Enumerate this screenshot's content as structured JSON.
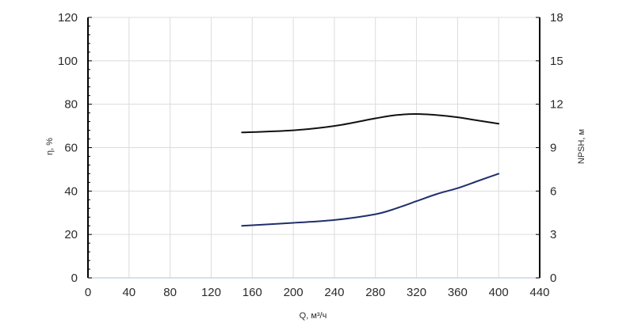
{
  "chart_data": {
    "type": "line",
    "title": "",
    "xlabel": "Q, м³/ч",
    "ylabel_left": "η, %",
    "ylabel_right": "NPSH, м",
    "xlim": [
      0,
      440
    ],
    "ylim_left": [
      0,
      120
    ],
    "ylim_right": [
      0,
      18
    ],
    "x_ticks": [
      0,
      40,
      80,
      120,
      160,
      200,
      240,
      280,
      320,
      360,
      400,
      440
    ],
    "y_left_ticks": [
      0,
      20,
      40,
      60,
      80,
      100,
      120
    ],
    "y_right_ticks": [
      0,
      3,
      6,
      9,
      12,
      15,
      18
    ],
    "grid": true,
    "series": [
      {
        "axis": "left",
        "color": "#111111",
        "x": [
          150,
          200,
          240,
          280,
          300,
          320,
          340,
          360,
          380,
          400
        ],
        "y": [
          67,
          68,
          70,
          73.5,
          75,
          75.5,
          75,
          74,
          72.5,
          71
        ]
      },
      {
        "axis": "right",
        "color": "#1f2f6b",
        "x": [
          150,
          200,
          240,
          280,
          300,
          320,
          340,
          360,
          380,
          400
        ],
        "y": [
          3.6,
          3.8,
          4.0,
          4.4,
          4.8,
          5.3,
          5.8,
          6.2,
          6.7,
          7.2
        ]
      }
    ]
  }
}
